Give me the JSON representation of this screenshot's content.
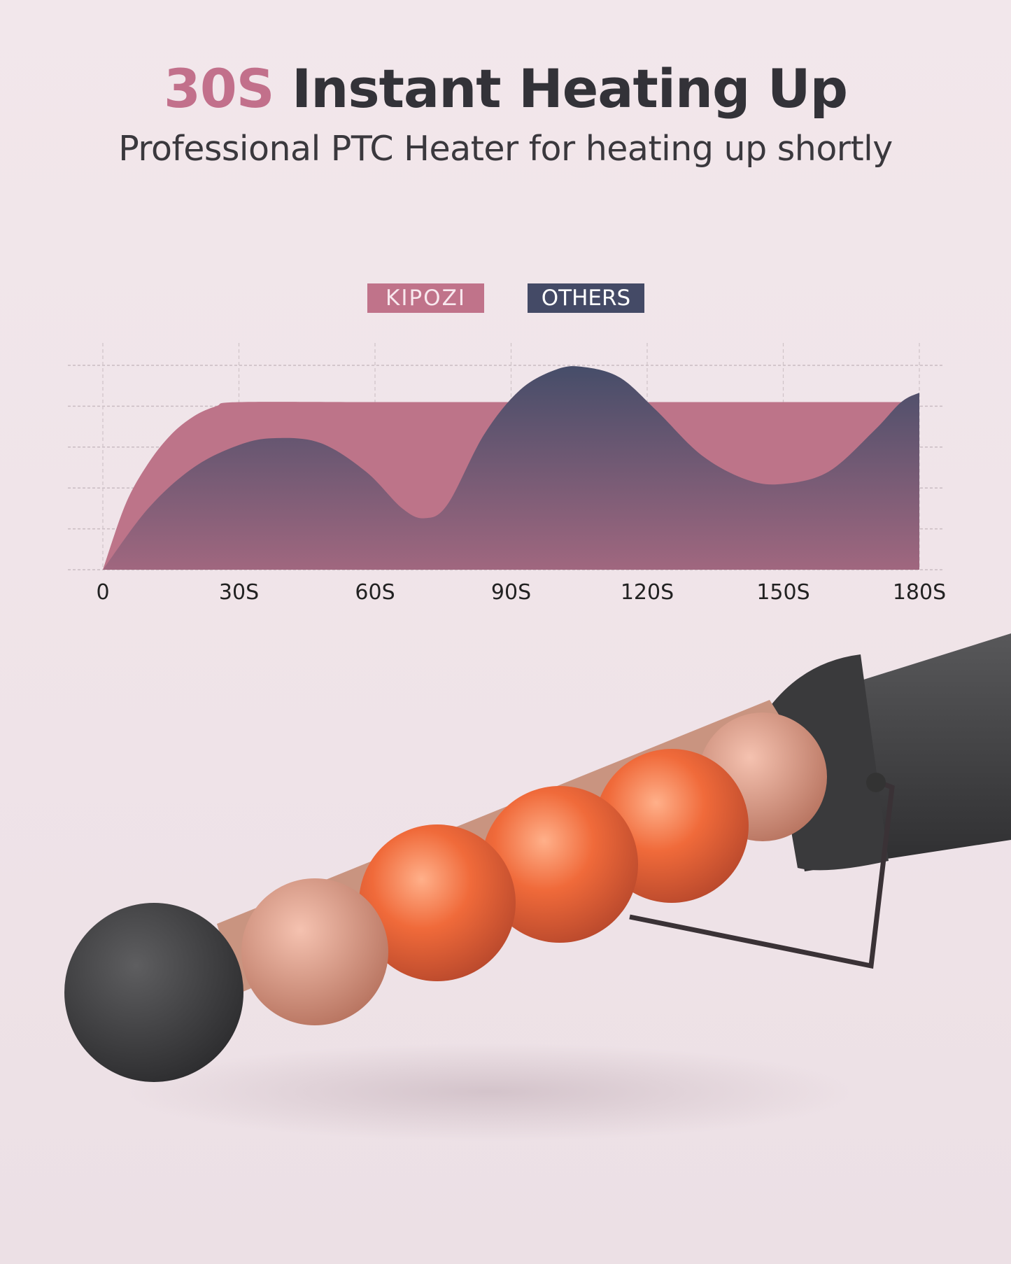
{
  "header": {
    "title_accent": "30S",
    "title_rest": " Instant Heating Up",
    "subtitle": "Professional PTC Heater for heating up shortly"
  },
  "colors": {
    "kipozi": "#bd7489",
    "others_top": "#464d69",
    "others_bottom": "#a0677f",
    "accent": "#c2708b",
    "background": "#f1e6ea"
  },
  "chart_data": {
    "type": "area",
    "title": "",
    "xlabel": "",
    "ylabel": "",
    "x_ticks": [
      "0",
      "30S",
      "60S",
      "90S",
      "120S",
      "150S",
      "180S"
    ],
    "xlim": [
      0,
      180
    ],
    "ylim": [
      0,
      5
    ],
    "grid": true,
    "legend_placement": "top-center",
    "series": [
      {
        "name": "KIPOZI",
        "points": [
          [
            0,
            0
          ],
          [
            5,
            1.6
          ],
          [
            10,
            2.6
          ],
          [
            15,
            3.3
          ],
          [
            20,
            3.75
          ],
          [
            25,
            4.0
          ],
          [
            30,
            4.1
          ],
          [
            60,
            4.1
          ],
          [
            90,
            4.1
          ],
          [
            120,
            4.1
          ],
          [
            150,
            4.1
          ],
          [
            180,
            4.1
          ]
        ]
      },
      {
        "name": "OTHERS",
        "points": [
          [
            0,
            0
          ],
          [
            10,
            1.5
          ],
          [
            20,
            2.5
          ],
          [
            30,
            3.05
          ],
          [
            38,
            3.22
          ],
          [
            48,
            3.1
          ],
          [
            58,
            2.4
          ],
          [
            66,
            1.5
          ],
          [
            71,
            1.26
          ],
          [
            76,
            1.6
          ],
          [
            84,
            3.3
          ],
          [
            92,
            4.4
          ],
          [
            100,
            4.9
          ],
          [
            106,
            4.96
          ],
          [
            114,
            4.7
          ],
          [
            122,
            3.9
          ],
          [
            132,
            2.8
          ],
          [
            142,
            2.2
          ],
          [
            150,
            2.1
          ],
          [
            160,
            2.4
          ],
          [
            170,
            3.4
          ],
          [
            176,
            4.1
          ],
          [
            180,
            4.33
          ]
        ]
      }
    ]
  },
  "product": {
    "icon": "curling-wand-illustration"
  }
}
